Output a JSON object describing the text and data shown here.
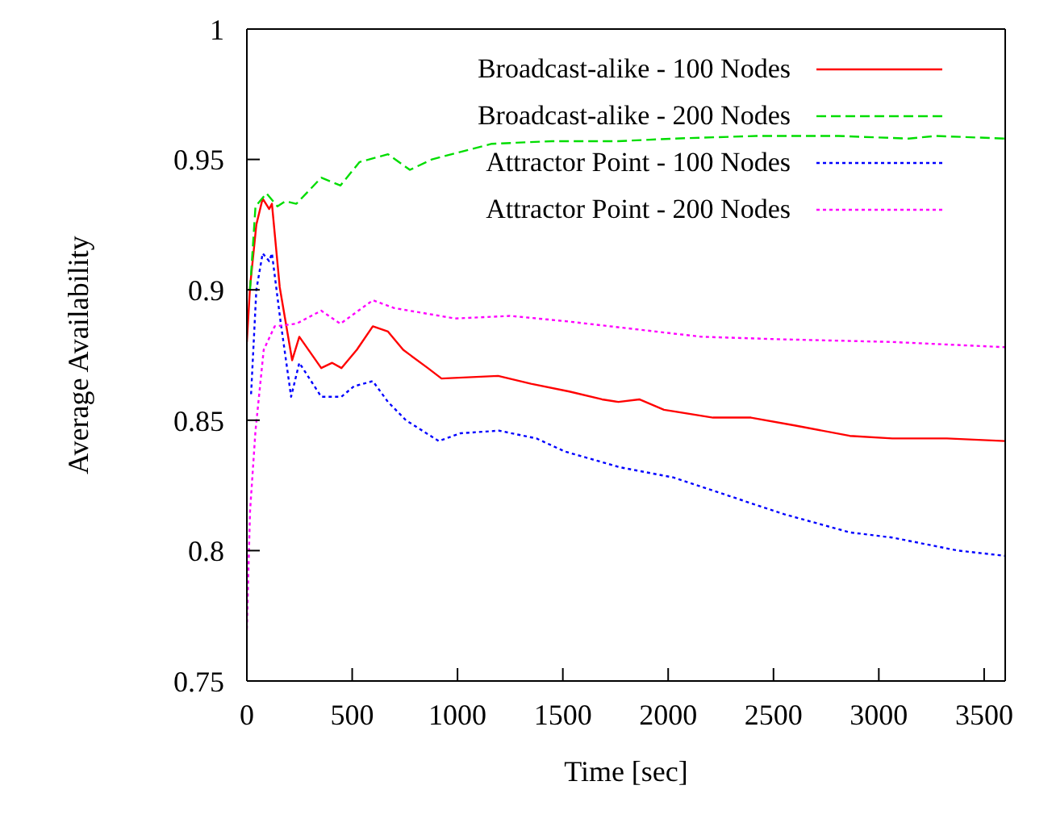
{
  "chart_data": {
    "type": "line",
    "xlabel": "Time [sec]",
    "ylabel": "Average Availability",
    "xlim": [
      0,
      3600
    ],
    "ylim": [
      0.75,
      1
    ],
    "xticks": [
      0,
      500,
      1000,
      1500,
      2000,
      2500,
      3000,
      3500
    ],
    "yticks": [
      0.75,
      0.8,
      0.85,
      0.9,
      0.95,
      1
    ],
    "grid": false,
    "legend": "top right",
    "marker": "none",
    "series": [
      {
        "name": "Broadcast-alike - 100 Nodes",
        "color": "#ff0000",
        "line_style": "solid",
        "x": [
          0,
          15,
          45,
          75,
          106,
          119,
          156,
          215,
          249,
          353,
          405,
          449,
          522,
          598,
          670,
          742,
          859,
          924,
          1193,
          1349,
          1531,
          1686,
          1764,
          1863,
          1980,
          2213,
          2393,
          2600,
          2862,
          3064,
          3323,
          3600
        ],
        "values": [
          0.88,
          0.901,
          0.925,
          0.935,
          0.931,
          0.933,
          0.901,
          0.873,
          0.882,
          0.87,
          0.872,
          0.87,
          0.877,
          0.886,
          0.884,
          0.877,
          0.87,
          0.866,
          0.867,
          0.864,
          0.861,
          0.858,
          0.857,
          0.858,
          0.854,
          0.851,
          0.851,
          0.848,
          0.844,
          0.843,
          0.843,
          0.842
        ]
      },
      {
        "name": "Broadcast-alike - 200 Nodes",
        "color": "#00dd00",
        "line_style": "dashed",
        "x": [
          15,
          41,
          93,
          145,
          183,
          235,
          353,
          444,
          535,
          670,
          774,
          878,
          1163,
          1448,
          1761,
          2027,
          2418,
          2809,
          3142,
          3272,
          3600
        ],
        "values": [
          0.9,
          0.932,
          0.937,
          0.932,
          0.934,
          0.933,
          0.943,
          0.94,
          0.949,
          0.952,
          0.946,
          0.95,
          0.956,
          0.957,
          0.957,
          0.958,
          0.959,
          0.959,
          0.958,
          0.959,
          0.958
        ]
      },
      {
        "name": "Attractor Point - 100 Nodes",
        "color": "#0000ff",
        "line_style": "dotted",
        "x": [
          20,
          45,
          75,
          106,
          119,
          158,
          210,
          249,
          353,
          449,
          508,
          598,
          670,
          755,
          911,
          1014,
          1197,
          1375,
          1510,
          1769,
          2027,
          2288,
          2549,
          2862,
          3064,
          3376,
          3600
        ],
        "values": [
          0.86,
          0.9,
          0.914,
          0.911,
          0.914,
          0.889,
          0.859,
          0.872,
          0.859,
          0.859,
          0.863,
          0.865,
          0.857,
          0.85,
          0.842,
          0.845,
          0.846,
          0.843,
          0.838,
          0.832,
          0.828,
          0.821,
          0.814,
          0.807,
          0.805,
          0.8,
          0.798
        ]
      },
      {
        "name": "Attractor Point - 200 Nodes",
        "color": "#ff00ff",
        "line_style": "dotted",
        "x": [
          0,
          15,
          41,
          80,
          132,
          235,
          353,
          444,
          598,
          700,
          989,
          1249,
          1510,
          1834,
          2158,
          2549,
          3064,
          3600
        ],
        "values": [
          0.77,
          0.815,
          0.846,
          0.877,
          0.886,
          0.887,
          0.892,
          0.887,
          0.896,
          0.893,
          0.889,
          0.89,
          0.888,
          0.885,
          0.882,
          0.881,
          0.88,
          0.878
        ]
      }
    ]
  }
}
